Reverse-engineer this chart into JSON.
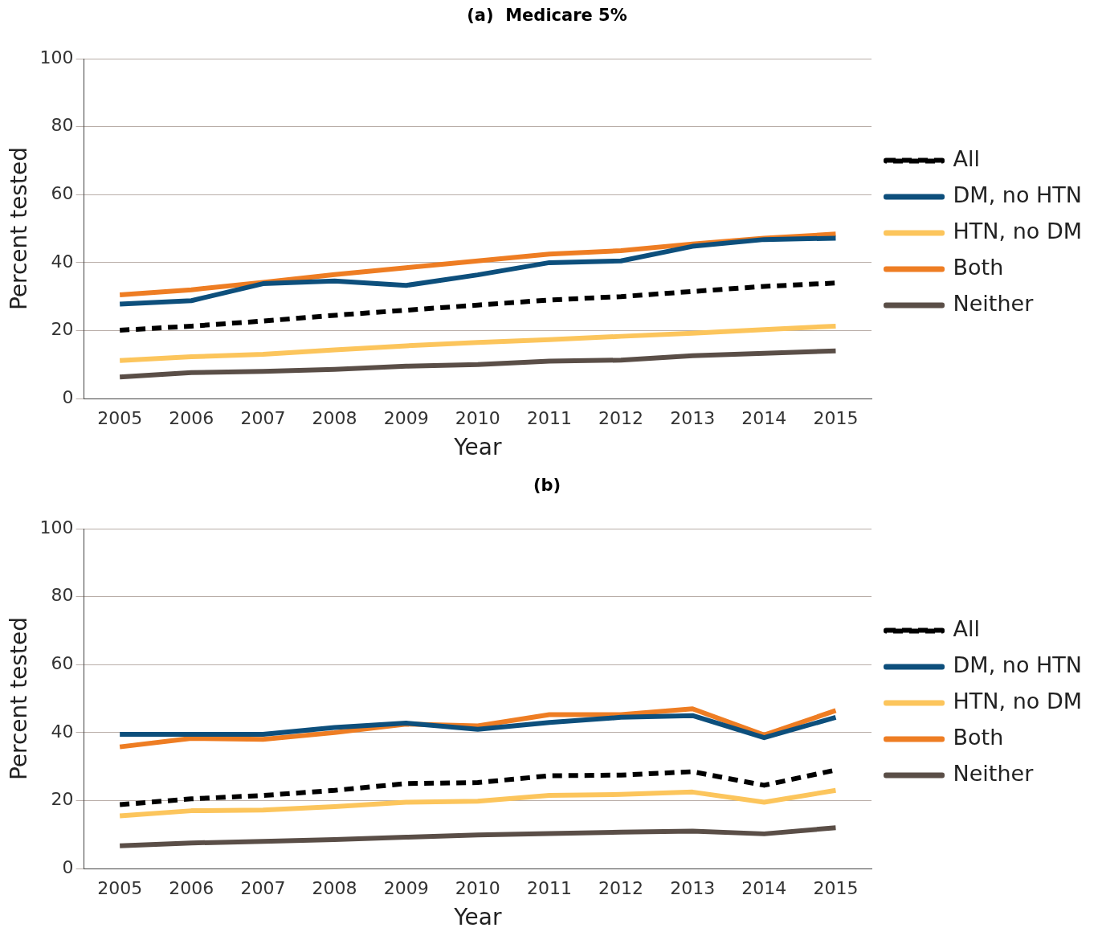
{
  "chart_data": [
    {
      "type": "line",
      "title": "(a)  Medicare 5%",
      "xlabel": "Year",
      "ylabel": "Percent tested",
      "categories": [
        "2005",
        "2006",
        "2007",
        "2008",
        "2009",
        "2010",
        "2011",
        "2012",
        "2013",
        "2014",
        "2015"
      ],
      "series": [
        {
          "name": "All",
          "color": "#000000",
          "line_style": "dashed",
          "values": [
            20.1,
            21.3,
            22.8,
            24.5,
            26,
            27.5,
            29,
            30,
            31.5,
            33,
            34
          ]
        },
        {
          "name": "DM, no HTN",
          "color": "#0d4f7c",
          "values": [
            27.8,
            28.8,
            33.8,
            34.6,
            33.3,
            36.4,
            40,
            40.5,
            44.8,
            46.8,
            47.2
          ]
        },
        {
          "name": "HTN, no DM",
          "color": "#fcc55c",
          "values": [
            11.2,
            12.3,
            13,
            14.3,
            15.5,
            16.5,
            17.3,
            18.3,
            19.2,
            20.3,
            21.3
          ]
        },
        {
          "name": "Both",
          "color": "#ee7d23",
          "values": [
            30.5,
            32,
            34.2,
            36.5,
            38.5,
            40.5,
            42.5,
            43.5,
            45.5,
            47.2,
            48.4
          ]
        },
        {
          "name": "Neither",
          "color": "#5a4e47",
          "values": [
            6.3,
            7.6,
            8,
            8.6,
            9.5,
            10,
            11,
            11.3,
            12.6,
            13.3,
            14
          ]
        }
      ],
      "ylim": [
        0,
        100
      ],
      "yticks": [
        0,
        20,
        40,
        60,
        80,
        100
      ],
      "grid": "y",
      "legend": "right",
      "line_style": "solid",
      "marker": "none"
    },
    {
      "type": "line",
      "title": "(b)",
      "xlabel": "Year",
      "ylabel": "Percent tested",
      "categories": [
        "2005",
        "2006",
        "2007",
        "2008",
        "2009",
        "2010",
        "2011",
        "2012",
        "2013",
        "2014",
        "2015"
      ],
      "series": [
        {
          "name": "All",
          "color": "#000000",
          "line_style": "dashed",
          "values": [
            18.8,
            20.5,
            21.5,
            23,
            25,
            25.3,
            27.3,
            27.5,
            28.5,
            24.5,
            29
          ]
        },
        {
          "name": "DM, no HTN",
          "color": "#0d4f7c",
          "values": [
            39.5,
            39.5,
            39.5,
            41.5,
            42.8,
            41,
            43,
            44.5,
            45,
            38.5,
            44.5
          ]
        },
        {
          "name": "HTN, no DM",
          "color": "#fcc55c",
          "values": [
            15.5,
            17,
            17.2,
            18.2,
            19.5,
            19.8,
            21.5,
            21.8,
            22.5,
            19.5,
            23
          ]
        },
        {
          "name": "Both",
          "color": "#ee7d23",
          "values": [
            35.8,
            38.3,
            38,
            40,
            42.5,
            42,
            45.3,
            45.3,
            47,
            39.3,
            46.5
          ]
        },
        {
          "name": "Neither",
          "color": "#5a4e47",
          "values": [
            6.7,
            7.5,
            8,
            8.5,
            9.2,
            9.9,
            10.3,
            10.7,
            11,
            10.2,
            12
          ]
        }
      ],
      "ylim": [
        0,
        100
      ],
      "yticks": [
        0,
        20,
        40,
        60,
        80,
        100
      ],
      "grid": "y",
      "legend": "right",
      "line_style": "solid",
      "marker": "none"
    }
  ]
}
